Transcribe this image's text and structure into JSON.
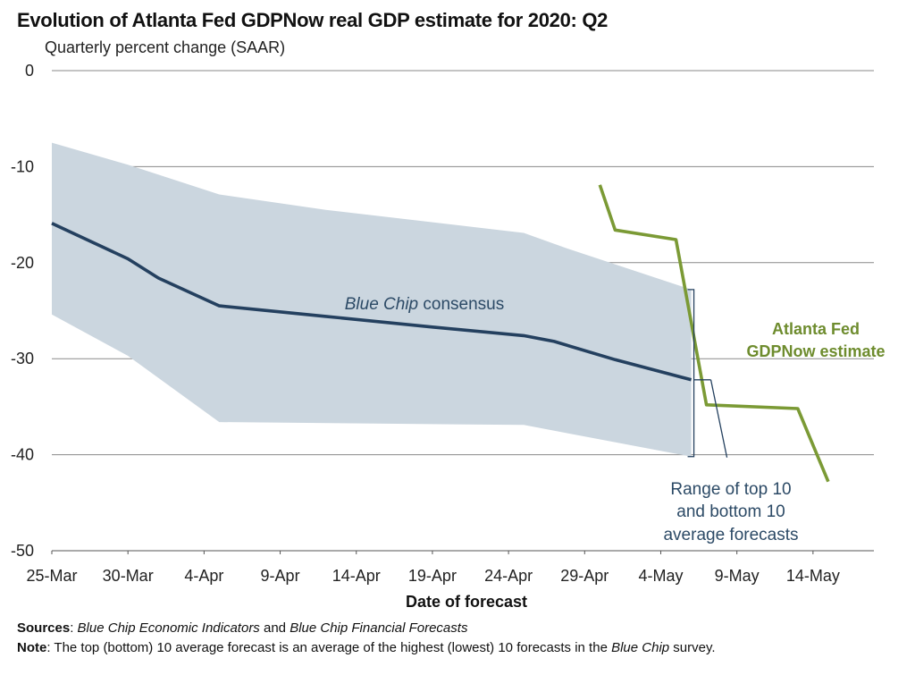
{
  "chart_data": {
    "type": "line",
    "title": "Evolution of Atlanta Fed GDPNow real GDP estimate for 2020: Q2",
    "subtitle": "Quarterly percent change (SAAR)",
    "xlabel": "Date of forecast",
    "ylabel": "",
    "ylim": [
      -50,
      0
    ],
    "yticks": [
      0,
      -10,
      -20,
      -30,
      -40,
      -50
    ],
    "xlim": [
      "2020-03-25",
      "2020-05-18"
    ],
    "xticks": [
      "25-Mar",
      "30-Mar",
      "4-Apr",
      "9-Apr",
      "14-Apr",
      "19-Apr",
      "24-Apr",
      "29-Apr",
      "4-May",
      "9-May",
      "14-May"
    ],
    "grid": "horizontal",
    "series": [
      {
        "name": "Blue Chip consensus",
        "color": "#24405f",
        "points": [
          [
            "2020-03-25",
            -15.9
          ],
          [
            "2020-03-30",
            -19.6
          ],
          [
            "2020-04-01",
            -21.6
          ],
          [
            "2020-04-05",
            -24.5
          ],
          [
            "2020-04-12",
            -25.6
          ],
          [
            "2020-04-19",
            -26.7
          ],
          [
            "2020-04-25",
            -27.6
          ],
          [
            "2020-04-27",
            -28.2
          ],
          [
            "2020-05-01",
            -30.1
          ],
          [
            "2020-05-06",
            -32.2
          ]
        ]
      },
      {
        "name": "Range of top 10 and bottom 10 average forecasts",
        "color": "#cbd6df",
        "upper": [
          [
            "2020-03-25",
            -7.5
          ],
          [
            "2020-03-30",
            -9.8
          ],
          [
            "2020-04-05",
            -12.9
          ],
          [
            "2020-04-12",
            -14.5
          ],
          [
            "2020-04-25",
            -16.9
          ],
          [
            "2020-04-28",
            -18.6
          ],
          [
            "2020-05-06",
            -22.8
          ]
        ],
        "lower": [
          [
            "2020-03-25",
            -25.4
          ],
          [
            "2020-03-30",
            -29.7
          ],
          [
            "2020-04-05",
            -36.6
          ],
          [
            "2020-04-25",
            -36.9
          ],
          [
            "2020-04-28",
            -37.8
          ],
          [
            "2020-05-06",
            -40.2
          ]
        ]
      },
      {
        "name": "Atlanta Fed GDPNow estimate",
        "color": "#7b9a35",
        "points": [
          [
            "2020-04-30",
            -11.9
          ],
          [
            "2020-05-01",
            -16.6
          ],
          [
            "2020-05-05",
            -17.6
          ],
          [
            "2020-05-07",
            -34.8
          ],
          [
            "2020-05-13",
            -35.2
          ],
          [
            "2020-05-15",
            -42.8
          ]
        ]
      }
    ],
    "annotations": {
      "consensus_prefix": "Blue Chip",
      "consensus_suffix": " consensus",
      "gdpnow_line1": "Atlanta Fed",
      "gdpnow_line2": "GDPNow estimate",
      "range_line1": "Range of top 10",
      "range_line2": "and bottom 10",
      "range_line3": "average forecasts"
    }
  },
  "footer": {
    "sources_label": "Sources",
    "sources_sep": ": ",
    "sources_pub1": "Blue Chip Economic Indicators",
    "sources_and": " and ",
    "sources_pub2": "Blue Chip Financial Forecasts",
    "note_label": "Note",
    "note_text_a": ": The top (bottom) 10 average forecast is an average of the highest (lowest) 10 forecasts in the ",
    "note_italic": "Blue Chip",
    "note_text_b": " survey."
  }
}
